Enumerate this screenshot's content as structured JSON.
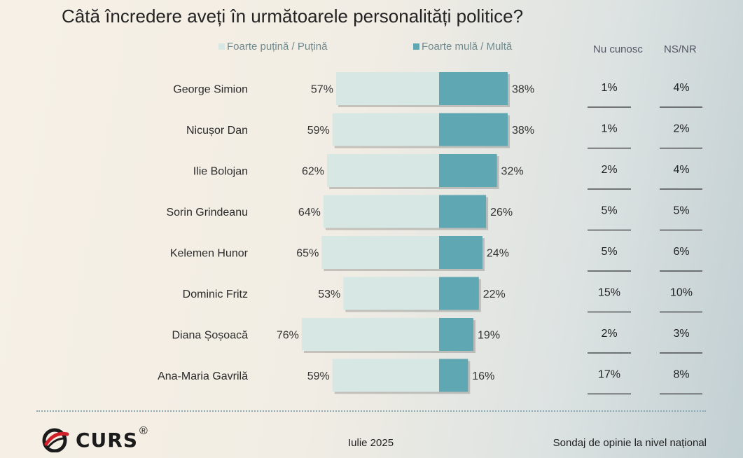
{
  "chart_data": {
    "type": "bar",
    "title": "Câtă încredere aveți în următoarele personalități politice?",
    "categories": [
      "George Simion",
      "Nicușor Dan",
      "Ilie Bolojan",
      "Sorin Grindeanu",
      "Kelemen Hunor",
      "Dominic Fritz",
      "Diana Șoșoacă",
      "Ana-Maria Gavrilă"
    ],
    "series": [
      {
        "name": "Foarte puțină / Puțină",
        "color": "#d7e7e4",
        "values": [
          57,
          59,
          62,
          64,
          65,
          53,
          76,
          59
        ]
      },
      {
        "name": "Foarte mulă / Multă",
        "color": "#5fa7b3",
        "values": [
          38,
          38,
          32,
          26,
          24,
          22,
          19,
          16
        ]
      }
    ],
    "extra_columns": [
      {
        "name": "Nu cunosc",
        "values": [
          1,
          1,
          2,
          5,
          5,
          15,
          2,
          17
        ]
      },
      {
        "name": "NS/NR",
        "values": [
          4,
          2,
          4,
          5,
          6,
          10,
          3,
          8
        ]
      }
    ],
    "value_suffix": "%"
  },
  "footer": {
    "brand": "CURS",
    "reg": "®",
    "date": "Iulie 2025",
    "survey": "Sondaj de opinie la nivel național"
  }
}
